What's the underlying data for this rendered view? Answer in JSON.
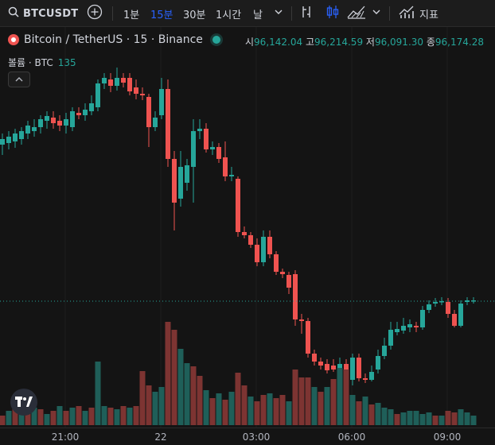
{
  "toolbar": {
    "symbol": "BTCUSDT",
    "intervals": [
      "1분",
      "15분",
      "30분",
      "1시간",
      "날"
    ],
    "active_interval": "15분",
    "indicators_label": "지표",
    "icons": [
      "search-icon",
      "add-symbol-icon",
      "interval-dropdown-icon",
      "bar-replay-icon",
      "candles-icon",
      "area-chart-icon",
      "chart-type-dropdown-icon",
      "indicators-icon"
    ]
  },
  "legend": {
    "title": "Bitcoin / TetherUS · 15 · Binance",
    "open_label": "시",
    "open": "96,142.04",
    "high_label": "고",
    "high": "96,214.59",
    "low_label": "저",
    "low": "96,091.30",
    "close_label": "종",
    "close": "96,174.28"
  },
  "volume": {
    "label": "볼륨 · BTC",
    "value": "135"
  },
  "colors": {
    "up": "#26a69a",
    "down": "#ef5350",
    "vol_up": "#1f5f59",
    "vol_down": "#7d3432",
    "background": "#141414"
  },
  "chart_data": {
    "type": "candlestick",
    "x_labels": [
      "21:00",
      "22",
      "03:00",
      "06:00",
      "09:00"
    ],
    "price_ohlc_relative_note": "values are price levels read relative to the last price (96,174)",
    "last_price": 96174.28
  }
}
